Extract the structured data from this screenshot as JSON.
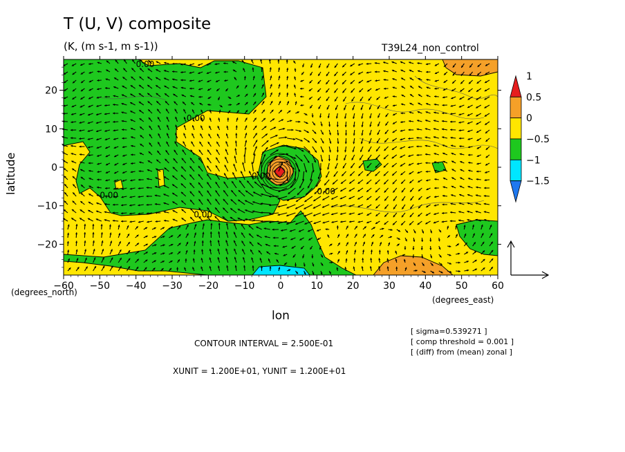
{
  "title": "T (U, V) composite",
  "subtitle": "(K, (m s-1, m s-1))",
  "run_label": "T39L24_non_control",
  "xlabel": "lon",
  "ylabel": "latitude",
  "xunit_note": "(degrees_east)",
  "yunit_note": "(degrees_north)",
  "contour_interval": "CONTOUR INTERVAL = 2.500E-01",
  "vector_units": "XUNIT = 1.200E+01, YUNIT = 1.200E+01",
  "info_lines": [
    "[ sigma=0.539271 ]",
    "[ comp threshold = 0.001 ]",
    "[ (diff) from (mean) zonal ]"
  ],
  "chart_data": {
    "type": "heatmap",
    "x_ticks": [
      -60,
      -50,
      -40,
      -30,
      -20,
      -10,
      0,
      10,
      20,
      30,
      40,
      50,
      60
    ],
    "x_tick_labels": [
      "−60",
      "−50",
      "−40",
      "−30",
      "−20",
      "−10",
      "0",
      "10",
      "20",
      "30",
      "40",
      "50",
      "60"
    ],
    "y_ticks": [
      -20,
      -10,
      0,
      10,
      20
    ],
    "y_tick_labels": [
      "−20",
      "−10",
      "0",
      "10",
      "20"
    ],
    "xlim": [
      -60,
      60
    ],
    "ylim": [
      -28,
      28
    ],
    "colorbar": {
      "levels": [
        -1.5,
        -1,
        -0.5,
        0,
        0.5,
        1
      ],
      "level_labels": [
        "−1.5",
        "−1",
        "−0.5",
        "0",
        "0.5",
        "1"
      ],
      "colors": [
        "#1e78f0",
        "#00e6ff",
        "#1ec81e",
        "#ffe600",
        "#f5a028",
        "#e61e1e"
      ]
    },
    "contour_labels": [
      {
        "text": "0.00",
        "lon": -40,
        "lat": 26
      },
      {
        "text": "0.00",
        "lon": -26,
        "lat": 12
      },
      {
        "text": "0.00",
        "lon": -50,
        "lat": -8
      },
      {
        "text": "0.00",
        "lon": -8,
        "lat": -3
      },
      {
        "text": "0.00",
        "lon": -24,
        "lat": -13
      },
      {
        "text": "0.00",
        "lon": 10,
        "lat": -7
      }
    ]
  }
}
